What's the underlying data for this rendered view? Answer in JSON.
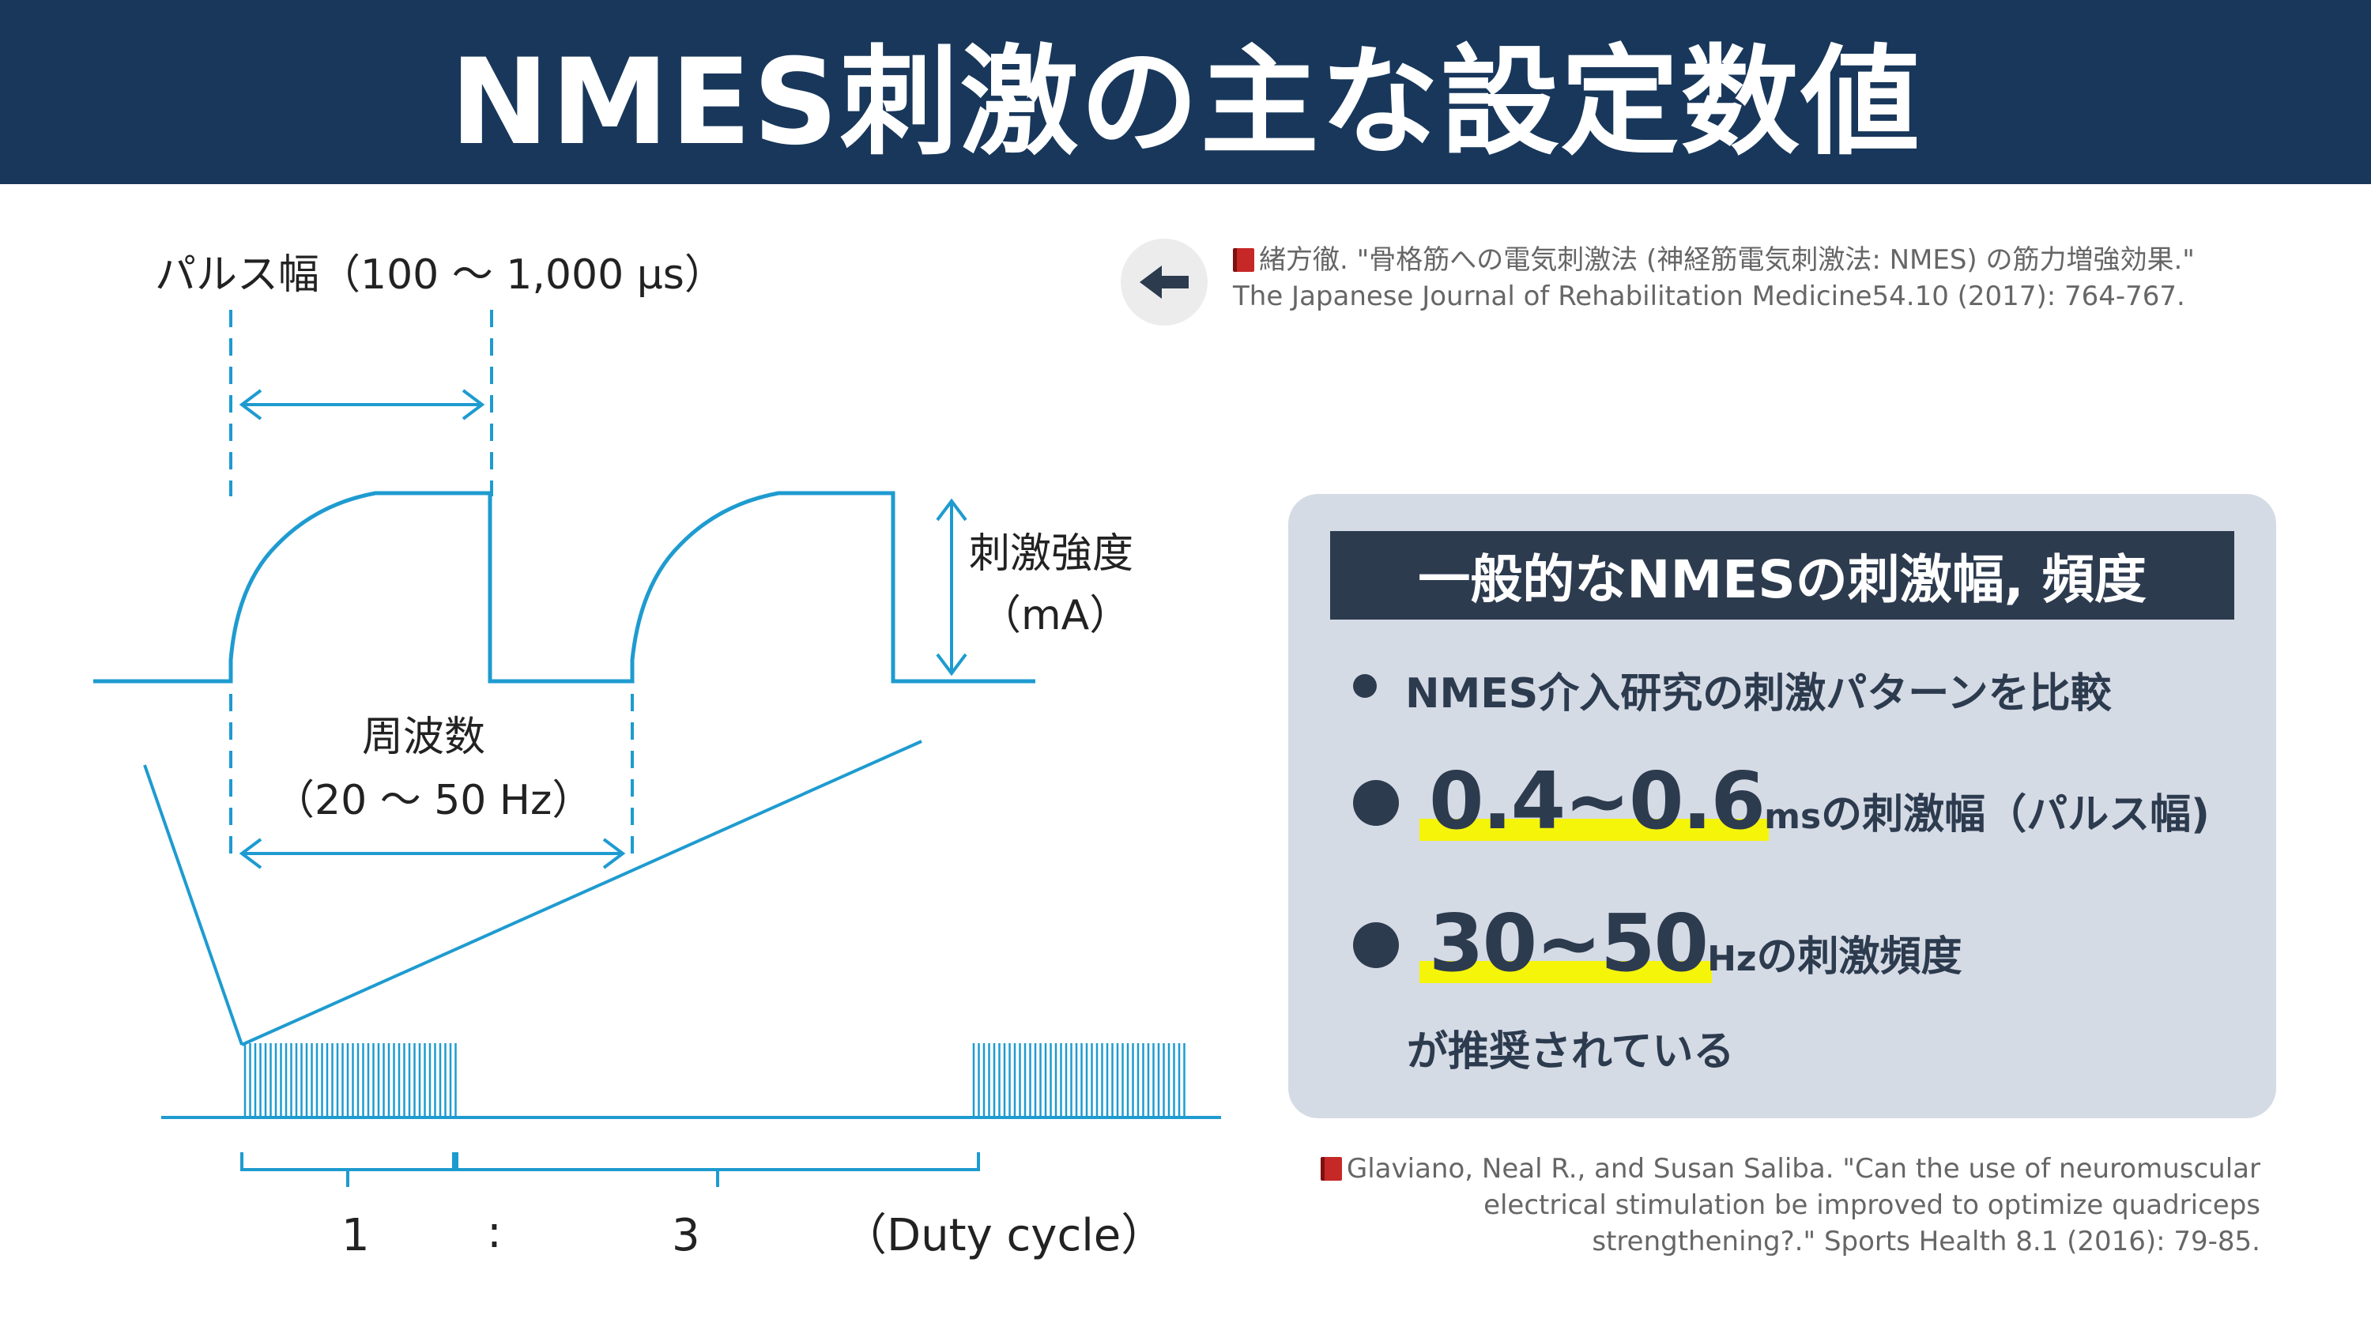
{
  "title": "NMES刺激の主な設定数値",
  "diagram": {
    "pulse_width_label": "パルス幅（100 〜 1,000 μs）",
    "intensity_label_1": "刺激強度",
    "intensity_label_2": "（mA）",
    "frequency_label_1": "周波数",
    "frequency_label_2": "（20 〜 50 Hz）",
    "duty_on": "1",
    "duty_sep": ":",
    "duty_off": "3",
    "duty_label": "（Duty cycle）",
    "line_color": "#1e9bd0"
  },
  "back_button": {
    "icon": "arrow-left-icon"
  },
  "reference_top": {
    "line1": "緒方徹. \"骨格筋への電気刺激法 (神経筋電気刺激法: NMES) の筋力増強効果.\"",
    "line2": "The Japanese Journal of Rehabilitation Medicine54.10 (2017): 764-767."
  },
  "card": {
    "title": "一般的なNMESの刺激幅, 頻度",
    "bullet1": "NMES介入研究の刺激パターンを比較",
    "bullet2_value": "0.4~0.6",
    "bullet2_unit": "ms",
    "bullet2_rest": "の刺激幅（パルス幅)",
    "bullet3_value": "30~50",
    "bullet3_unit": "Hz",
    "bullet3_rest": "の刺激頻度",
    "bullet3_cont": "が推奨されている",
    "highlight_color": "#f5f50a"
  },
  "reference_bottom": {
    "line1": "Glaviano, Neal R., and Susan Saliba. \"Can the use of neuromuscular",
    "line2": "electrical stimulation be improved to optimize quadriceps",
    "line3": "strengthening?.\" Sports Health 8.1 (2016): 79-85."
  }
}
